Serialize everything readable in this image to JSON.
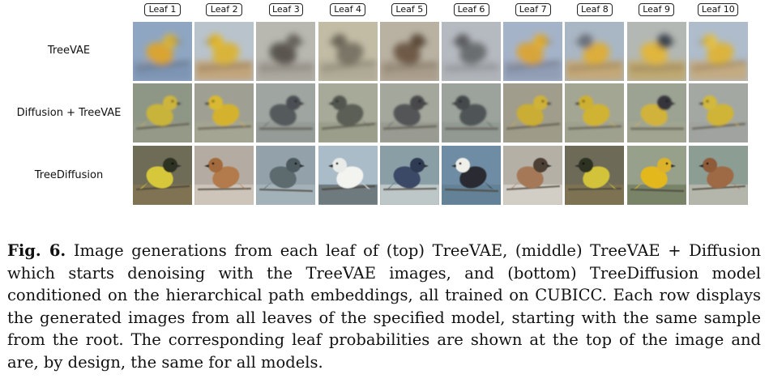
{
  "figure": {
    "leaf_labels": [
      "Leaf 1",
      "Leaf 2",
      "Leaf 3",
      "Leaf 4",
      "Leaf 5",
      "Leaf 6",
      "Leaf 7",
      "Leaf 8",
      "Leaf 9",
      "Leaf 10"
    ],
    "rows": [
      {
        "label": "TreeVAE",
        "images": [
          {
            "bg": "#8fa6c2",
            "body": "#d9a431",
            "head": "#d6b23c",
            "accent": "#6f86a8",
            "blur": 4
          },
          {
            "bg": "#b9c3cc",
            "body": "#d9b43a",
            "head": "#e0b72d",
            "accent": "#c98c3c",
            "blur": 4
          },
          {
            "bg": "#b8b8b0",
            "body": "#5a5650",
            "head": "#6b6660",
            "accent": "#9c978e",
            "blur": 4
          },
          {
            "bg": "#c2bca5",
            "body": "#7a7566",
            "head": "#6f6a5c",
            "accent": "#a19b88",
            "blur": 4
          },
          {
            "bg": "#b9b2a3",
            "body": "#6e5a46",
            "head": "#5e4d3c",
            "accent": "#9a8a78",
            "blur": 4
          },
          {
            "bg": "#b5bac0",
            "body": "#6b6e70",
            "head": "#5e6164",
            "accent": "#a8acb0",
            "blur": 4
          },
          {
            "bg": "#a5b3c8",
            "body": "#d8a53a",
            "head": "#e0ad35",
            "accent": "#7f8aa5",
            "blur": 4
          },
          {
            "bg": "#a9b6c4",
            "body": "#dcae3a",
            "head": "#6e7480",
            "accent": "#d89c3a",
            "blur": 4
          },
          {
            "bg": "#b3b8b4",
            "body": "#e0b63c",
            "head": "#3d4550",
            "accent": "#c99b3c",
            "blur": 4
          },
          {
            "bg": "#aebccc",
            "body": "#dcb43c",
            "head": "#e3c04a",
            "accent": "#d69c48",
            "blur": 4
          }
        ]
      },
      {
        "label": "Diffusion + TreeVAE",
        "images": [
          {
            "bg": "#8e9686",
            "body": "#c9b43a",
            "head": "#cdb53c",
            "accent": "#9a9c88",
            "blur": 1.2
          },
          {
            "bg": "#9fa093",
            "body": "#d4b22e",
            "head": "#d9b833",
            "accent": "#a9a894",
            "blur": 1.2
          },
          {
            "bg": "#9fa6a1",
            "body": "#555a5c",
            "head": "#4c5053",
            "accent": "#8c918e",
            "blur": 1.2
          },
          {
            "bg": "#a7aa99",
            "body": "#5c5f57",
            "head": "#53564f",
            "accent": "#90937f",
            "blur": 1.2
          },
          {
            "bg": "#a4a79c",
            "body": "#525456",
            "head": "#48494b",
            "accent": "#8f9188",
            "blur": 1.2
          },
          {
            "bg": "#9ba39c",
            "body": "#505457",
            "head": "#45484b",
            "accent": "#8a918b",
            "blur": 1.2
          },
          {
            "bg": "#a09d8c",
            "body": "#c9ad34",
            "head": "#cfb238",
            "accent": "#9d9987",
            "blur": 1.2
          },
          {
            "bg": "#a4a694",
            "body": "#d0b330",
            "head": "#cdb033",
            "accent": "#9b9d8b",
            "blur": 1.2
          },
          {
            "bg": "#9da392",
            "body": "#d1b33a",
            "head": "#34363a",
            "accent": "#a2a690",
            "blur": 1.2
          },
          {
            "bg": "#a4a8a3",
            "body": "#cfb437",
            "head": "#d2b83d",
            "accent": "#9ca09b",
            "blur": 1.2
          }
        ]
      },
      {
        "label": "TreeDiffusion",
        "images": [
          {
            "bg": "#6e6b57",
            "body": "#d7c83a",
            "head": "#2d3220",
            "accent": "#8c7a4e",
            "blur": 0.4
          },
          {
            "bg": "#b4aca2",
            "body": "#b37a4c",
            "head": "#a36a3c",
            "accent": "#e2d8cc",
            "blur": 0.4
          },
          {
            "bg": "#93a2aa",
            "body": "#5d6a6e",
            "head": "#4e5a5e",
            "accent": "#b1bfc4",
            "blur": 0.4
          },
          {
            "bg": "#a9bcc8",
            "body": "#f3f3f0",
            "head": "#e9ebe8",
            "accent": "#3e4246",
            "blur": 0.4
          },
          {
            "bg": "#8a9fa5",
            "body": "#3b4a66",
            "head": "#2e3a52",
            "accent": "#e8e8e6",
            "blur": 0.4
          },
          {
            "bg": "#6e8ca3",
            "body": "#2a2c30",
            "head": "#f0efe9",
            "accent": "#5d7a8c",
            "blur": 0.4
          },
          {
            "bg": "#b5b0a6",
            "body": "#a57958",
            "head": "#4e3f35",
            "accent": "#eae6de",
            "blur": 0.4
          },
          {
            "bg": "#6d6a58",
            "body": "#d2c33b",
            "head": "#2e3322",
            "accent": "#8a7a4f",
            "blur": 0.4
          },
          {
            "bg": "#97a08b",
            "body": "#e3b81f",
            "head": "#dcb22a",
            "accent": "#5f6b4c",
            "blur": 0.4
          },
          {
            "bg": "#8c9d94",
            "body": "#9e6a45",
            "head": "#8f5c3a",
            "accent": "#d6cbbd",
            "blur": 0.4
          }
        ]
      }
    ]
  },
  "caption": {
    "fig_label": "Fig. 6.",
    "text": "Image generations from each leaf of (top) TreeVAE, (middle) TreeVAE + Diffusion which starts denoising with the TreeVAE images, and (bottom) TreeDiffusion model conditioned on the hierarchical path embeddings, all trained on CUBICC. Each row displays the generated images from all leaves of the specified model, starting with the same sample from the root. The corresponding leaf probabilities are shown at the top of the image and are, by design, the same for all models."
  }
}
